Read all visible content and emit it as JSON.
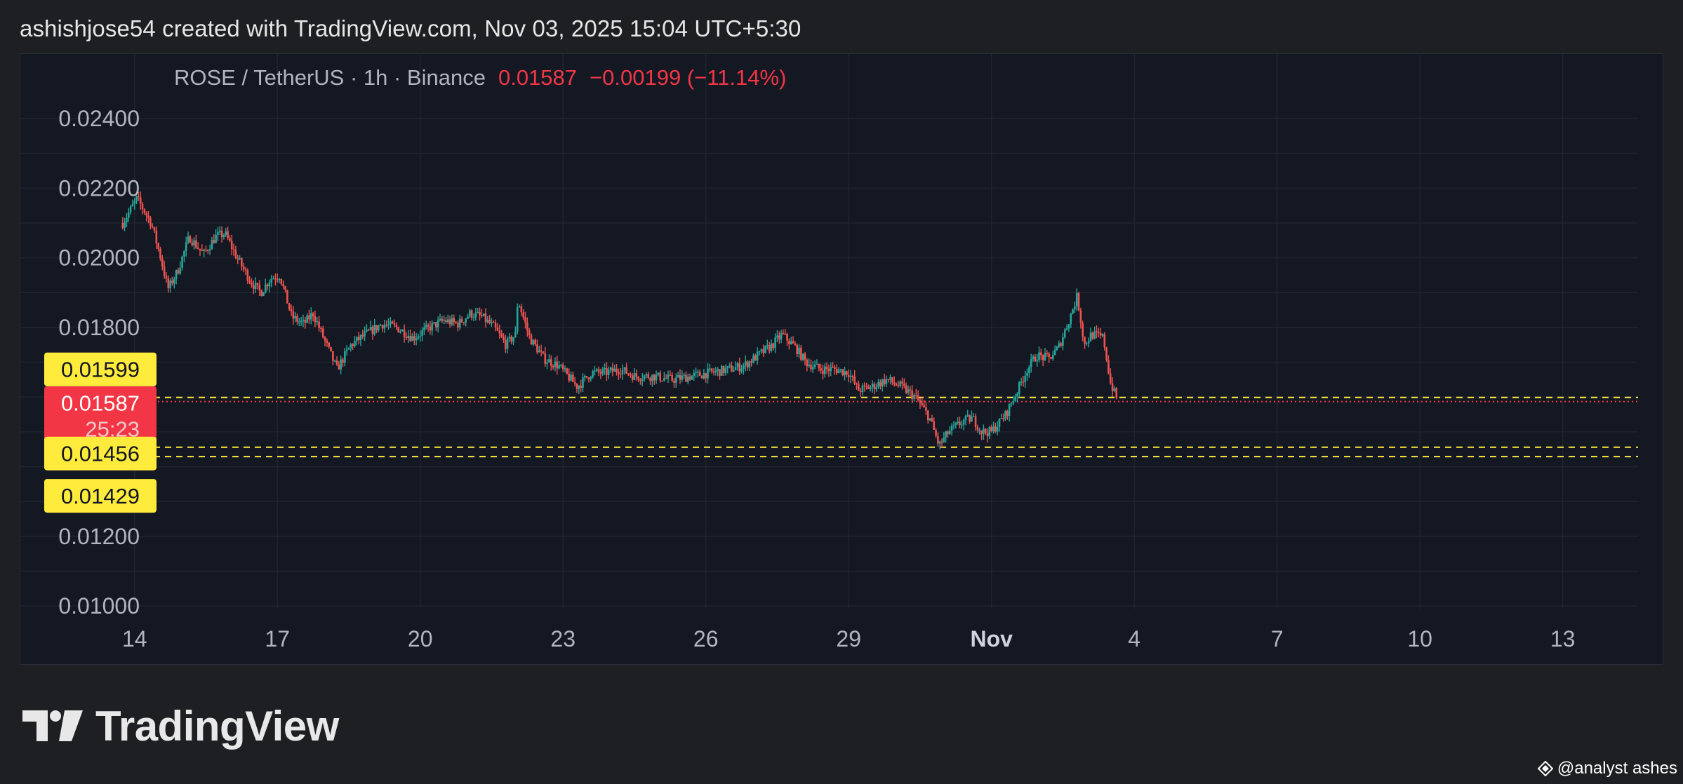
{
  "caption": "ashishjose54 created with TradingView.com, Nov 03, 2025 15:04 UTC+5:30",
  "brand": {
    "name": "TradingView",
    "logo_icon": "tradingview-logo-icon"
  },
  "watermark": {
    "text": "@analyst ashes",
    "icon": "diamond-icon"
  },
  "colors": {
    "background": "#1e1f22",
    "pane": "#141823",
    "up": "#26a69a",
    "down": "#ef5350",
    "last_price": "#f23645",
    "level": "#ffeb3b",
    "label_text_dark": "#131722"
  },
  "chart_data": {
    "type": "candlestick",
    "title": "ROSE / TetherUS · 1h · Binance",
    "last": "0.01587",
    "change": "−0.00199 (−11.14%)",
    "ylim": [
      0.01,
      0.025
    ],
    "y_ticks": [
      "0.02400",
      "0.02200",
      "0.02000",
      "0.01800",
      "0.01200",
      "0.01000"
    ],
    "x_ticks": [
      {
        "label": "14",
        "day": 0,
        "bold": false
      },
      {
        "label": "17",
        "day": 3,
        "bold": false
      },
      {
        "label": "20",
        "day": 6,
        "bold": false
      },
      {
        "label": "23",
        "day": 9,
        "bold": false
      },
      {
        "label": "26",
        "day": 12,
        "bold": false
      },
      {
        "label": "29",
        "day": 15,
        "bold": false
      },
      {
        "label": "Nov",
        "day": 18,
        "bold": true
      },
      {
        "label": "4",
        "day": 21,
        "bold": false
      },
      {
        "label": "7",
        "day": 24,
        "bold": false
      },
      {
        "label": "10",
        "day": 27,
        "bold": false
      },
      {
        "label": "13",
        "day": 30,
        "bold": false
      }
    ],
    "xlim_days": [
      -0.35,
      30.3
    ],
    "price_lines": [
      {
        "value": 0.01599,
        "label": "0.01599",
        "style": "dashed",
        "color": "#ffeb3b"
      },
      {
        "value": 0.01587,
        "label": "0.01587",
        "sublabel": "25:23",
        "style": "dotted",
        "color": "#f23645"
      },
      {
        "value": 0.01456,
        "label": "0.01456",
        "style": "dashed",
        "color": "#ffeb3b"
      },
      {
        "value": 0.01429,
        "label": "0.01429",
        "style": "dashed",
        "color": "#ffeb3b"
      }
    ],
    "close_path": [
      [
        -0.25,
        0.021
      ],
      [
        0.05,
        0.0217
      ],
      [
        0.35,
        0.021
      ],
      [
        0.55,
        0.02
      ],
      [
        0.7,
        0.0191
      ],
      [
        0.9,
        0.0196
      ],
      [
        1.15,
        0.0206
      ],
      [
        1.45,
        0.0201
      ],
      [
        1.7,
        0.0206
      ],
      [
        1.9,
        0.0207
      ],
      [
        2.15,
        0.02
      ],
      [
        2.45,
        0.0193
      ],
      [
        2.65,
        0.019
      ],
      [
        2.85,
        0.0194
      ],
      [
        3.05,
        0.0195
      ],
      [
        3.3,
        0.0183
      ],
      [
        3.55,
        0.0181
      ],
      [
        3.75,
        0.0184
      ],
      [
        4.0,
        0.0176
      ],
      [
        4.25,
        0.0168
      ],
      [
        4.55,
        0.0175
      ],
      [
        4.85,
        0.0178
      ],
      [
        5.2,
        0.0181
      ],
      [
        5.5,
        0.018
      ],
      [
        5.85,
        0.0177
      ],
      [
        6.2,
        0.018
      ],
      [
        6.5,
        0.0182
      ],
      [
        6.8,
        0.0181
      ],
      [
        7.05,
        0.0184
      ],
      [
        7.3,
        0.0183
      ],
      [
        7.55,
        0.018
      ],
      [
        7.8,
        0.0175
      ],
      [
        8.0,
        0.0178
      ],
      [
        8.05,
        0.0188
      ],
      [
        8.3,
        0.0177
      ],
      [
        8.6,
        0.0171
      ],
      [
        8.9,
        0.0169
      ],
      [
        9.1,
        0.0166
      ],
      [
        9.3,
        0.0163
      ],
      [
        9.6,
        0.0167
      ],
      [
        9.9,
        0.0167
      ],
      [
        10.2,
        0.0168
      ],
      [
        10.5,
        0.0166
      ],
      [
        10.9,
        0.0166
      ],
      [
        11.3,
        0.0165
      ],
      [
        11.7,
        0.0166
      ],
      [
        12.1,
        0.0167
      ],
      [
        12.5,
        0.0168
      ],
      [
        12.8,
        0.0169
      ],
      [
        13.1,
        0.0172
      ],
      [
        13.4,
        0.0175
      ],
      [
        13.6,
        0.0178
      ],
      [
        13.9,
        0.0174
      ],
      [
        14.1,
        0.017
      ],
      [
        14.4,
        0.0168
      ],
      [
        14.7,
        0.0168
      ],
      [
        15.0,
        0.0167
      ],
      [
        15.2,
        0.0162
      ],
      [
        15.5,
        0.0163
      ],
      [
        15.8,
        0.0165
      ],
      [
        16.1,
        0.0163
      ],
      [
        16.4,
        0.016
      ],
      [
        16.7,
        0.0154
      ],
      [
        16.9,
        0.0146
      ],
      [
        17.1,
        0.015
      ],
      [
        17.4,
        0.0153
      ],
      [
        17.6,
        0.0154
      ],
      [
        17.8,
        0.015
      ],
      [
        18.0,
        0.015
      ],
      [
        18.3,
        0.0155
      ],
      [
        18.55,
        0.0162
      ],
      [
        18.75,
        0.0168
      ],
      [
        18.95,
        0.0172
      ],
      [
        19.2,
        0.0171
      ],
      [
        19.4,
        0.0174
      ],
      [
        19.6,
        0.0181
      ],
      [
        19.8,
        0.0189
      ],
      [
        19.95,
        0.0175
      ],
      [
        20.1,
        0.0178
      ],
      [
        20.35,
        0.0177
      ],
      [
        20.5,
        0.0164
      ],
      [
        20.65,
        0.0159
      ]
    ]
  }
}
